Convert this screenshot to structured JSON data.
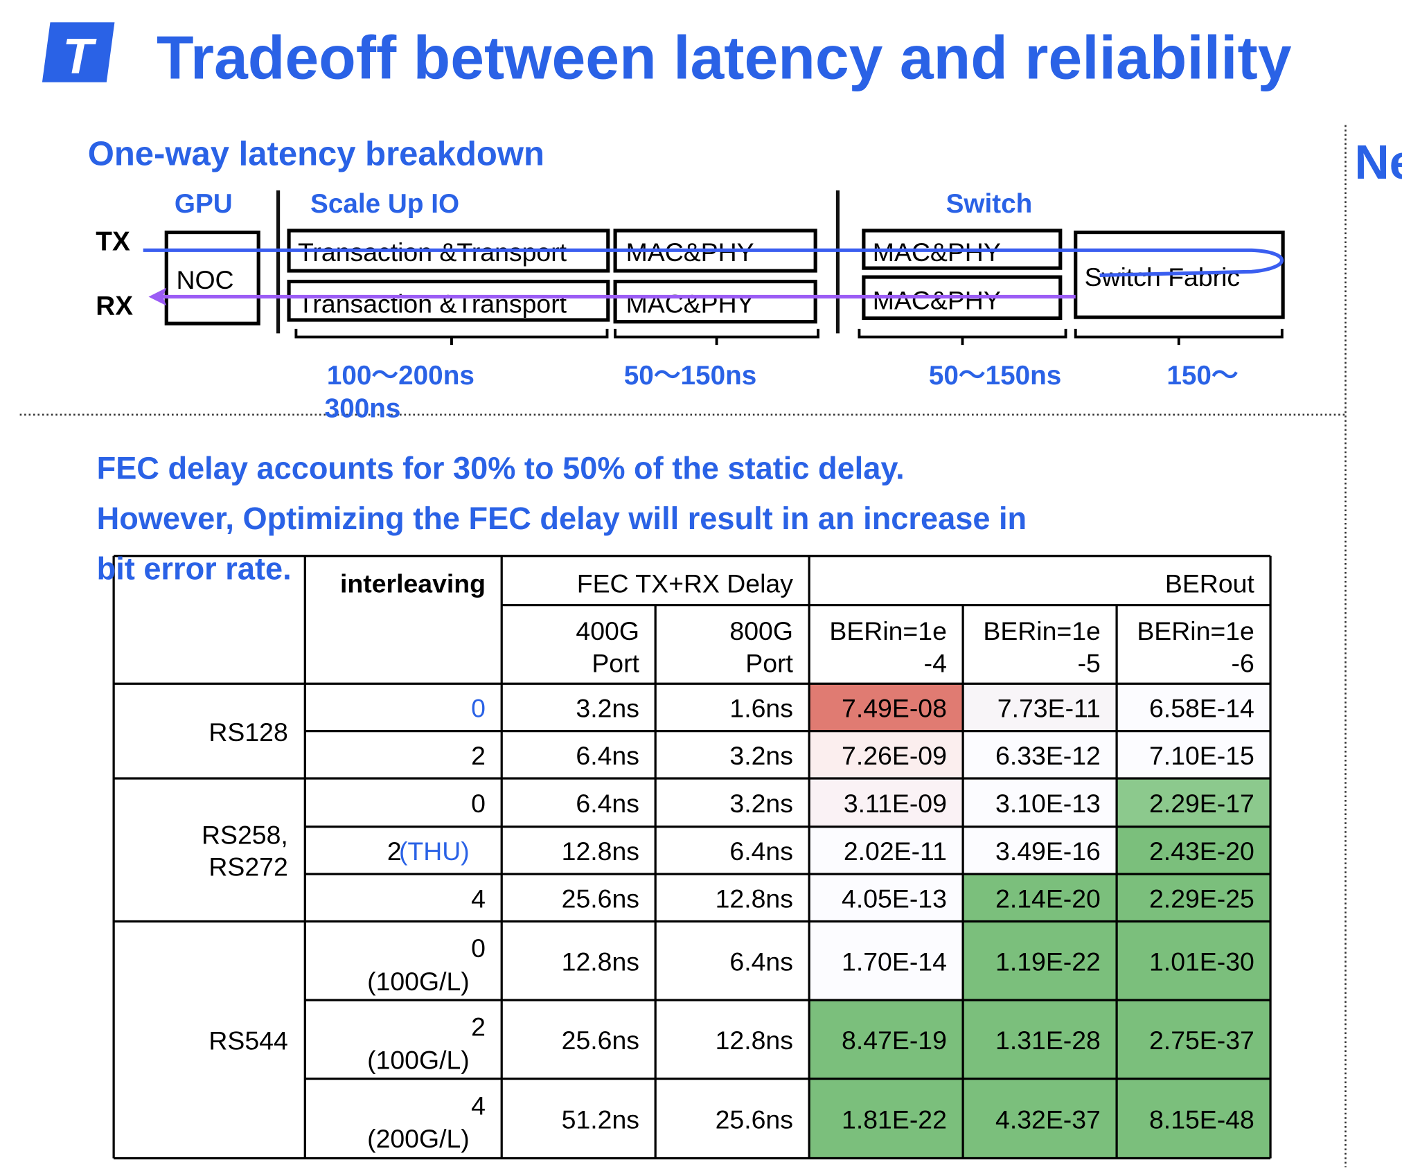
{
  "header": {
    "title": "Tradeoff between latency and reliability",
    "logo": "T",
    "side_title": "Ne"
  },
  "diagram": {
    "title": "One-way latency breakdown",
    "groups": [
      "GPU",
      "Scale Up IO",
      "Switch"
    ],
    "rows": [
      "TX",
      "RX"
    ],
    "boxes": [
      "NOC",
      "Transaction &Transport",
      "MAC&PHY",
      "MAC&PHY",
      "Switch Fabric",
      "Transaction &Transport",
      "MAC&PHY",
      "MAC&PHY"
    ],
    "latencies": [
      "100～200ns",
      "50～150ns",
      "50～150ns",
      "150～"
    ],
    "latency_overflow": "300ns"
  },
  "text": {
    "lines": [
      "FEC delay accounts for 30% to 50% of the static delay.",
      "However, Optimizing the FEC delay will result in an increase in",
      "bit error rate."
    ]
  },
  "table": {
    "headers": {
      "interleaving": "interleaving",
      "delay": "FEC TX+RX Delay",
      "ber": "BERout",
      "columns": [
        [
          "400G",
          "Port"
        ],
        [
          "800G",
          "Port"
        ],
        [
          "BERin=1e",
          "-4"
        ],
        [
          "BERin=1e",
          "-5"
        ],
        [
          "BERin=1e",
          "-6"
        ]
      ]
    },
    "groups": [
      {
        "code": [
          "RS128"
        ],
        "rows": [
          {
            "interleaving": "0",
            "interleaving_color": "#2a62e6",
            "d400": "3.2ns",
            "d800": "1.6ns",
            "ber": [
              "7.49E-08",
              "7.73E-11",
              "6.58E-14"
            ],
            "colors": [
              "#e07b72",
              "#f8f5f8",
              "#fcfcff"
            ]
          },
          {
            "interleaving": "2",
            "d400": "6.4ns",
            "d800": "3.2ns",
            "ber": [
              "7.26E-09",
              "6.33E-12",
              "7.10E-15"
            ],
            "colors": [
              "#fbeeee",
              "#fcfcff",
              "#fcfcff"
            ]
          }
        ]
      },
      {
        "code": [
          "RS258,",
          "RS272"
        ],
        "rows": [
          {
            "interleaving": "0",
            "d400": "6.4ns",
            "d800": "3.2ns",
            "ber": [
              "3.11E-09",
              "3.10E-13",
              "2.29E-17"
            ],
            "colors": [
              "#faf2f5",
              "#fcfcff",
              "#8cc98d"
            ]
          },
          {
            "interleaving": "2",
            "note": "(THU)",
            "note_color": "#2a62e6",
            "d400": "12.8ns",
            "d800": "6.4ns",
            "ber": [
              "2.02E-11",
              "3.49E-16",
              "2.43E-20"
            ],
            "colors": [
              "#fcfcff",
              "#fcfcff",
              "#7bbf7c"
            ]
          },
          {
            "interleaving": "4",
            "d400": "25.6ns",
            "d800": "12.8ns",
            "ber": [
              "4.05E-13",
              "2.14E-20",
              "2.29E-25"
            ],
            "colors": [
              "#fcfcff",
              "#7bbf7c",
              "#7bbf7c"
            ]
          }
        ]
      },
      {
        "code": [
          "RS544"
        ],
        "rows": [
          {
            "interleaving": "0",
            "note": "(100G/L)",
            "d400": "12.8ns",
            "d800": "6.4ns",
            "ber": [
              "1.70E-14",
              "1.19E-22",
              "1.01E-30"
            ],
            "colors": [
              "#fcfcff",
              "#7bbf7c",
              "#7bbf7c"
            ]
          },
          {
            "interleaving": "2",
            "note": "(100G/L)",
            "d400": "25.6ns",
            "d800": "12.8ns",
            "ber": [
              "8.47E-19",
              "1.31E-28",
              "2.75E-37"
            ],
            "colors": [
              "#7bbf7c",
              "#7bbf7c",
              "#7bbf7c"
            ]
          },
          {
            "interleaving": "4",
            "note": "(200G/L)",
            "d400": "51.2ns",
            "d800": "25.6ns",
            "ber": [
              "1.81E-22",
              "4.32E-37",
              "8.15E-48"
            ],
            "colors": [
              "#7bbf7c",
              "#7bbf7c",
              "#7bbf7c"
            ]
          }
        ]
      }
    ]
  }
}
